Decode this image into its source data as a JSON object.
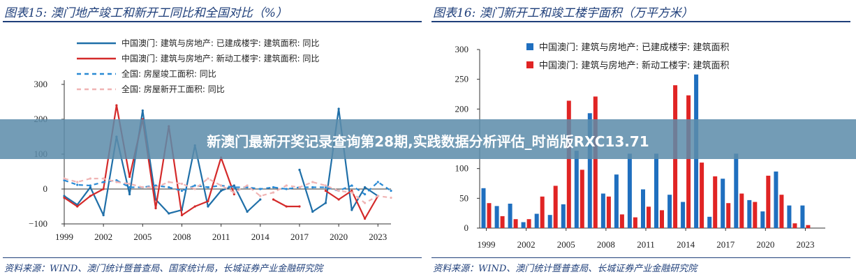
{
  "banner": {
    "text": "新澳门最新开奖记录查询第28期,实践数据分析评估_时尚版RXC13.71"
  },
  "left": {
    "title": "图表15:  澳门地产竣工和新开工同比和全国对比（%）",
    "source": "资料来源：WIND、澳门统计暨普查局、国家统计局，长城证券产业金融研究院",
    "chart_data": {
      "type": "line",
      "x": [
        1999,
        2000,
        2001,
        2002,
        2003,
        2004,
        2005,
        2006,
        2007,
        2008,
        2009,
        2010,
        2011,
        2012,
        2013,
        2014,
        2015,
        2016,
        2017,
        2018,
        2019,
        2020,
        2021,
        2022,
        2023,
        2024
      ],
      "x_ticks": [
        "1999",
        "2002",
        "2005",
        "2008",
        "2011",
        "2014",
        "2017",
        "2020",
        "2023"
      ],
      "ylim": [
        -100,
        300
      ],
      "y_ticks": [
        "300",
        "200",
        "100",
        "0",
        "−100"
      ],
      "series": [
        {
          "name": "中国澳门: 建筑与房地产: 已建成楼宇: 建筑面积: 同比",
          "color": "#1f6fa8",
          "dash": "solid",
          "values": [
            -20,
            -45,
            5,
            -75,
            150,
            -15,
            225,
            -30,
            -70,
            -60,
            125,
            -50,
            -5,
            10,
            -65,
            -30,
            null,
            null,
            55,
            -65,
            -40,
            230,
            -60,
            5,
            -20,
            null
          ]
        },
        {
          "name": "中国澳门: 建筑与房地产: 新动工楼宇: 建筑面积: 同比",
          "color": "#d42a2a",
          "dash": "solid",
          "values": [
            -25,
            -50,
            -20,
            0,
            240,
            35,
            200,
            -55,
            180,
            -75,
            -50,
            -35,
            90,
            -15,
            null,
            null,
            -30,
            -50,
            -50,
            null,
            -5,
            -30,
            -5,
            -85,
            -20,
            null
          ]
        },
        {
          "name": "全国: 房屋竣工面积: 同比",
          "color": "#2a8ad4",
          "dash": "6,5",
          "values": [
            25,
            12,
            10,
            20,
            25,
            5,
            5,
            10,
            5,
            -5,
            10,
            5,
            10,
            5,
            5,
            0,
            5,
            0,
            5,
            5,
            5,
            -5,
            10,
            -15,
            20,
            -5
          ]
        },
        {
          "name": "全国: 房屋新开工面积: 同比",
          "color": "#f0b4b4",
          "dash": "6,5",
          "values": [
            30,
            20,
            30,
            30,
            20,
            15,
            5,
            5,
            20,
            15,
            0,
            30,
            10,
            -10,
            10,
            -20,
            -10,
            10,
            5,
            20,
            10,
            -5,
            -10,
            -40,
            -20,
            -25
          ]
        }
      ]
    }
  },
  "right": {
    "title": "图表16:  澳门新开工和竣工楼宇面积（万平方米）",
    "source": "资料来源：WIND、澳门统计暨普查局、长城证券产业金融研究院",
    "chart_data": {
      "type": "bar",
      "categories": [
        1999,
        2000,
        2001,
        2002,
        2003,
        2004,
        2005,
        2006,
        2007,
        2008,
        2009,
        2010,
        2011,
        2012,
        2013,
        2014,
        2015,
        2016,
        2017,
        2018,
        2019,
        2020,
        2021,
        2022,
        2023,
        2024
      ],
      "x_ticks": [
        "1999",
        "2002",
        "2005",
        "2008",
        "2011",
        "2014",
        "2017",
        "2020",
        "2023"
      ],
      "ylim": [
        0,
        300
      ],
      "y_ticks": [
        "300",
        "250",
        "200",
        "150",
        "100",
        "50",
        "0"
      ],
      "series": [
        {
          "name": "中国澳门: 建筑与房地产: 已建成楼宇: 建筑面积",
          "color": "#1f6fbf",
          "values": [
            67,
            37,
            41,
            10,
            24,
            22,
            40,
            130,
            193,
            58,
            90,
            125,
            65,
            125,
            56,
            44,
            258,
            19,
            83,
            125,
            47,
            28,
            95,
            38,
            38,
            null
          ]
        },
        {
          "name": "中国澳门: 建筑与房地产: 新动工楼宇: 建筑面积",
          "color": "#e02424",
          "values": [
            42,
            20,
            15,
            15,
            53,
            71,
            214,
            98,
            221,
            53,
            23,
            18,
            36,
            30,
            240,
            223,
            110,
            87,
            42,
            58,
            44,
            88,
            56,
            8,
            5,
            null
          ]
        }
      ]
    }
  }
}
